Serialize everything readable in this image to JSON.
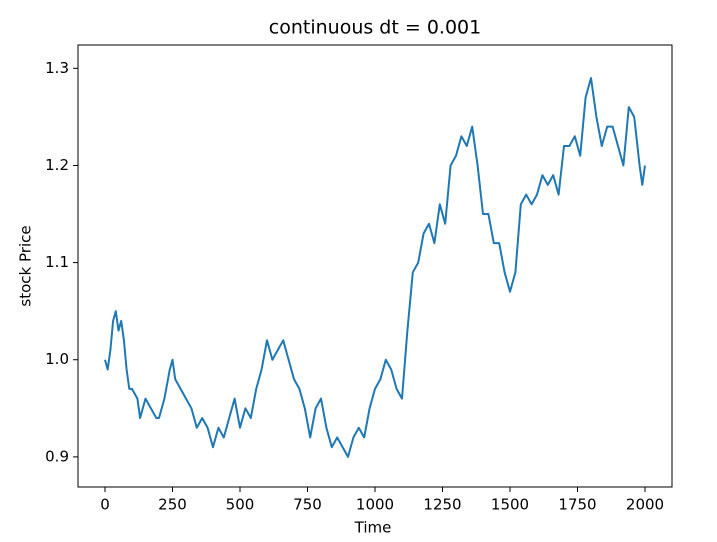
{
  "chart_data": {
    "type": "line",
    "title": "continuous dt = 0.001",
    "xlabel": "Time",
    "ylabel": "stock Price",
    "x": [
      0,
      10,
      20,
      30,
      40,
      50,
      60,
      70,
      80,
      90,
      100,
      120,
      130,
      150,
      170,
      190,
      200,
      220,
      240,
      250,
      260,
      280,
      300,
      320,
      340,
      360,
      380,
      400,
      420,
      440,
      460,
      480,
      500,
      520,
      540,
      560,
      580,
      600,
      620,
      640,
      660,
      680,
      700,
      720,
      740,
      760,
      780,
      800,
      820,
      840,
      860,
      880,
      900,
      920,
      940,
      960,
      980,
      1000,
      1020,
      1040,
      1060,
      1080,
      1100,
      1120,
      1140,
      1160,
      1180,
      1200,
      1220,
      1240,
      1260,
      1280,
      1300,
      1320,
      1340,
      1360,
      1380,
      1400,
      1420,
      1440,
      1460,
      1480,
      1500,
      1520,
      1540,
      1560,
      1580,
      1600,
      1620,
      1640,
      1660,
      1680,
      1700,
      1720,
      1740,
      1760,
      1780,
      1800,
      1820,
      1840,
      1860,
      1880,
      1900,
      1920,
      1940,
      1960,
      1980,
      1990,
      2000
    ],
    "values": [
      1.0,
      0.99,
      1.01,
      1.04,
      1.05,
      1.03,
      1.04,
      1.02,
      0.99,
      0.97,
      0.97,
      0.96,
      0.94,
      0.96,
      0.95,
      0.94,
      0.94,
      0.96,
      0.99,
      1.0,
      0.98,
      0.97,
      0.96,
      0.95,
      0.93,
      0.94,
      0.93,
      0.91,
      0.93,
      0.92,
      0.94,
      0.96,
      0.93,
      0.95,
      0.94,
      0.97,
      0.99,
      1.02,
      1.0,
      1.01,
      1.02,
      1.0,
      0.98,
      0.97,
      0.95,
      0.92,
      0.95,
      0.96,
      0.93,
      0.91,
      0.92,
      0.91,
      0.9,
      0.92,
      0.93,
      0.92,
      0.95,
      0.97,
      0.98,
      1.0,
      0.99,
      0.97,
      0.96,
      1.03,
      1.09,
      1.1,
      1.13,
      1.14,
      1.12,
      1.16,
      1.14,
      1.2,
      1.21,
      1.23,
      1.22,
      1.24,
      1.2,
      1.15,
      1.15,
      1.12,
      1.12,
      1.09,
      1.07,
      1.09,
      1.16,
      1.17,
      1.16,
      1.17,
      1.19,
      1.18,
      1.19,
      1.17,
      1.22,
      1.22,
      1.23,
      1.21,
      1.27,
      1.29,
      1.25,
      1.22,
      1.24,
      1.24,
      1.22,
      1.2,
      1.26,
      1.25,
      1.2,
      1.18,
      1.2
    ],
    "color": "#1f77b4",
    "xlim": [
      -100,
      2100
    ],
    "ylim": [
      0.869,
      1.324
    ],
    "xticks": [
      0,
      250,
      500,
      750,
      1000,
      1250,
      1500,
      1750,
      2000
    ],
    "yticks": [
      0.9,
      {
        "value": 1,
        "label": "1.0"
      },
      1.1,
      1.2,
      1.3
    ]
  }
}
